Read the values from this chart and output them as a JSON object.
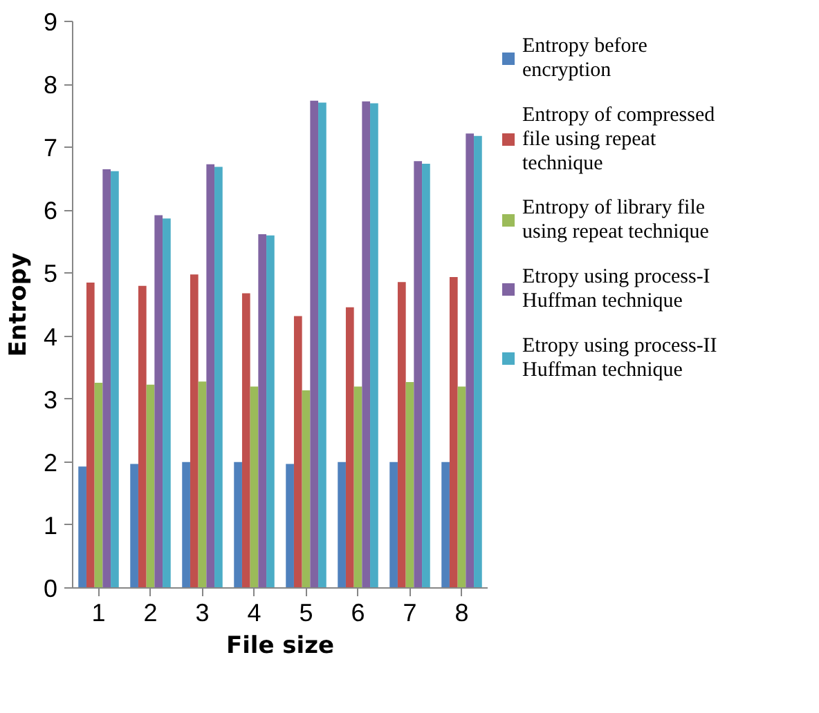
{
  "chart_data": {
    "type": "bar",
    "xlabel": "File size",
    "ylabel": "Entropy",
    "categories": [
      "1",
      "2",
      "3",
      "4",
      "5",
      "6",
      "7",
      "8"
    ],
    "ylim": [
      0,
      9
    ],
    "yticks": [
      0,
      1,
      2,
      3,
      4,
      5,
      6,
      7,
      8,
      9
    ],
    "grid": false,
    "legend": "right",
    "series": [
      {
        "name": "Entropy before encryption",
        "color": "#4f81bd",
        "values": [
          1.93,
          1.97,
          2.0,
          2.0,
          1.97,
          2.0,
          2.0,
          2.0
        ]
      },
      {
        "name": "Entropy of compressed file using repeat technique",
        "color": "#c0504d",
        "values": [
          4.85,
          4.8,
          4.98,
          4.68,
          4.32,
          4.46,
          4.86,
          4.94
        ]
      },
      {
        "name": "Entropy of library file using repeat technique",
        "color": "#9bbb59",
        "values": [
          3.26,
          3.23,
          3.28,
          3.2,
          3.14,
          3.2,
          3.27,
          3.2
        ]
      },
      {
        "name": "Etropy using process-I Huffman technique",
        "color": "#8064a2",
        "values": [
          6.65,
          5.92,
          6.73,
          5.62,
          7.74,
          7.73,
          6.78,
          7.22
        ]
      },
      {
        "name": "Etropy using process-II Huffman technique",
        "color": "#4bacc6",
        "values": [
          6.62,
          5.87,
          6.69,
          5.6,
          7.71,
          7.7,
          6.74,
          7.18
        ]
      }
    ]
  }
}
